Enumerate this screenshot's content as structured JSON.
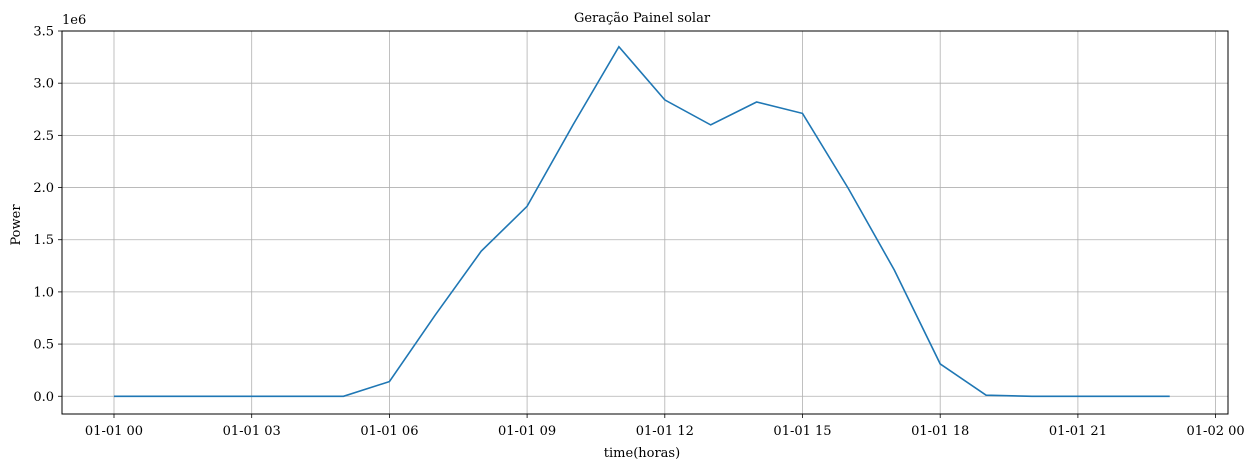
{
  "chart_data": {
    "type": "line",
    "title": "Geração Painel solar",
    "xlabel": "time(horas)",
    "ylabel": "Power",
    "y_offset_label": "1e6",
    "grid": true,
    "x_tick_labels": [
      "01-01 00",
      "01-01 03",
      "01-01 06",
      "01-01 09",
      "01-01 12",
      "01-01 15",
      "01-01 18",
      "01-01 21",
      "01-02 00"
    ],
    "y_tick_labels": [
      "0.0",
      "0.5",
      "1.0",
      "1.5",
      "2.0",
      "2.5",
      "3.0",
      "3.5"
    ],
    "y_ticks": [
      0,
      0.5,
      1.0,
      1.5,
      2.0,
      2.5,
      3.0,
      3.5
    ],
    "ylim": [
      -0.17,
      3.5
    ],
    "xlim": [
      "01-01 00",
      "01-02 00"
    ],
    "line_color": "#1f77b4",
    "series": [
      {
        "x": [
          "01-01 00",
          "01-01 01",
          "01-01 02",
          "01-01 03",
          "01-01 04",
          "01-01 05",
          "01-01 06",
          "01-01 07",
          "01-01 08",
          "01-01 09",
          "01-01 10",
          "01-01 11",
          "01-01 12",
          "01-01 13",
          "01-01 14",
          "01-01 15",
          "01-01 16",
          "01-01 17",
          "01-01 18",
          "01-01 19",
          "01-01 20",
          "01-01 21",
          "01-01 22",
          "01-01 23"
        ],
        "values": [
          0,
          0,
          0,
          0,
          0,
          0,
          0.14,
          0.78,
          1.39,
          1.82,
          2.6,
          3.35,
          2.84,
          2.6,
          2.82,
          2.71,
          1.99,
          1.21,
          0.31,
          0.01,
          0,
          0,
          0,
          0
        ]
      }
    ]
  }
}
